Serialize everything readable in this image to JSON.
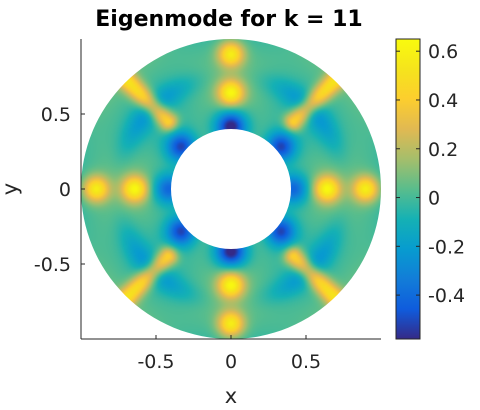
{
  "chart_data": {
    "type": "heatmap",
    "title": "Eigenmode for k = 11",
    "xlabel": "x",
    "ylabel": "y",
    "domain": "annulus",
    "inner_radius": 0.4,
    "outer_radius": 1.0,
    "xlim": [
      -1.0,
      1.0
    ],
    "ylim": [
      -1.0,
      1.0
    ],
    "xticks": [
      -0.5,
      0,
      0.5
    ],
    "xtick_labels": [
      "-0.5",
      "0",
      "0.5"
    ],
    "yticks": [
      -0.5,
      0,
      0.5
    ],
    "ytick_labels": [
      "-0.5",
      "0",
      "0.5"
    ],
    "colorbar": {
      "min": -0.58,
      "max": 0.65,
      "ticks": [
        -0.4,
        -0.2,
        0,
        0.2,
        0.4,
        0.6
      ],
      "tick_labels": [
        "-0.4",
        "-0.2",
        "0",
        "0.2",
        "0.4",
        "0.6"
      ],
      "colormap": "parula"
    },
    "hotspots": [
      {
        "x": 0.0,
        "y": 0.9,
        "value": 0.6
      },
      {
        "x": 0.0,
        "y": 0.64,
        "value": 0.62
      },
      {
        "x": 0.0,
        "y": -0.64,
        "value": 0.62
      },
      {
        "x": 0.0,
        "y": -0.9,
        "value": 0.6
      },
      {
        "x": -0.9,
        "y": 0.0,
        "value": 0.6
      },
      {
        "x": -0.64,
        "y": 0.0,
        "value": 0.62
      },
      {
        "x": 0.64,
        "y": 0.0,
        "value": 0.62
      },
      {
        "x": 0.9,
        "y": 0.0,
        "value": 0.6
      }
    ],
    "ridges": [
      {
        "from": [
          -0.42,
          0.45
        ],
        "to": [
          -0.78,
          0.81
        ],
        "value": 0.58
      },
      {
        "from": [
          0.42,
          0.45
        ],
        "to": [
          0.78,
          0.81
        ],
        "value": 0.58
      },
      {
        "from": [
          -0.42,
          -0.45
        ],
        "to": [
          -0.78,
          -0.81
        ],
        "value": 0.58
      },
      {
        "from": [
          0.42,
          -0.45
        ],
        "to": [
          0.78,
          -0.81
        ],
        "value": 0.58
      }
    ],
    "troughs": [
      {
        "x": 0.0,
        "y": 0.42,
        "value": -0.55
      },
      {
        "x": 0.0,
        "y": -0.42,
        "value": -0.55
      },
      {
        "x": -0.42,
        "y": 0.0,
        "value": -0.35
      },
      {
        "x": 0.42,
        "y": 0.0,
        "value": -0.35
      },
      {
        "x": -0.33,
        "y": 0.28,
        "value": -0.5
      },
      {
        "x": 0.33,
        "y": 0.28,
        "value": -0.5
      },
      {
        "x": -0.33,
        "y": -0.28,
        "value": -0.5
      },
      {
        "x": 0.33,
        "y": -0.28,
        "value": -0.5
      }
    ]
  }
}
